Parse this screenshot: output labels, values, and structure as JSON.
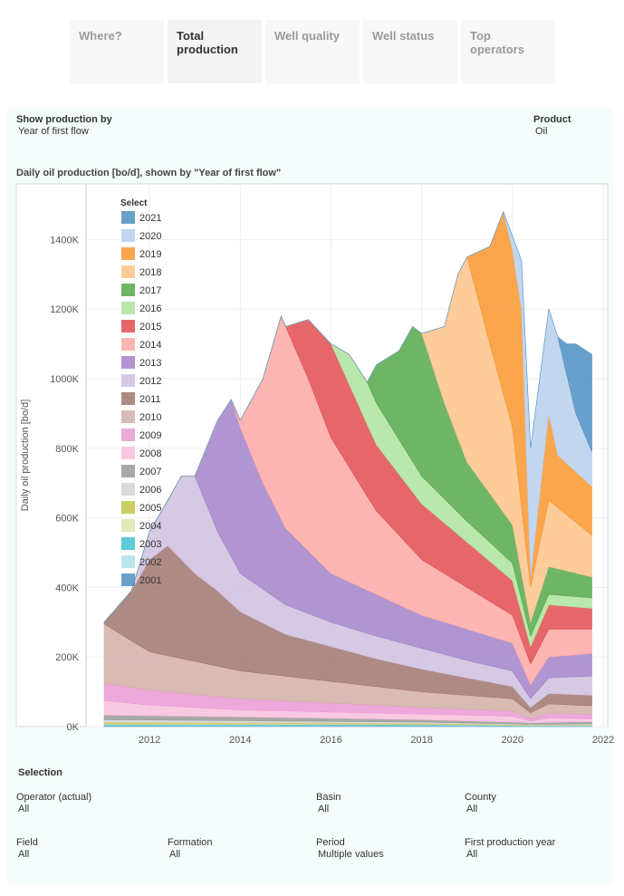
{
  "tabs": [
    {
      "label": "Where?",
      "active": false
    },
    {
      "label": "Total production",
      "active": true
    },
    {
      "label": "Well quality",
      "active": false
    },
    {
      "label": "Well status",
      "active": false
    },
    {
      "label": "Top operators",
      "active": false
    }
  ],
  "controls": {
    "show_by_label": "Show production by",
    "show_by_value": "Year of first flow",
    "product_label": "Product",
    "product_value": "Oil"
  },
  "selection": {
    "heading": "Selection",
    "operator_label": "Operator (actual)",
    "operator_value": "All",
    "basin_label": "Basin",
    "basin_value": "All",
    "county_label": "County",
    "county_value": "All",
    "field_label": "Field",
    "field_value": "All",
    "formation_label": "Formation",
    "formation_value": "All",
    "period_label": "Period",
    "period_value": "Multiple values",
    "fpy_label": "First production year",
    "fpy_value": "All"
  },
  "chart_data": {
    "type": "area",
    "stacked": true,
    "title": "Daily oil production [bo/d], shown by \"Year of first flow\"",
    "xlabel": "",
    "ylabel": "Daily oil production [bo/d]",
    "xlim": [
      2010.6,
      2022.1
    ],
    "ylim": [
      0,
      1560000
    ],
    "x_ticks": [
      "2012",
      "2014",
      "2016",
      "2018",
      "2020",
      "2022"
    ],
    "y_ticks": [
      "0K",
      "200K",
      "400K",
      "600K",
      "800K",
      "1000K",
      "1200K",
      "1400K"
    ],
    "legend_title": "Select",
    "legend_position": "top-left",
    "legend": [
      {
        "name": "2021",
        "color": "#4e8fc3"
      },
      {
        "name": "2020",
        "color": "#b9cfec"
      },
      {
        "name": "2019",
        "color": "#f9962e"
      },
      {
        "name": "2018",
        "color": "#fec38a"
      },
      {
        "name": "2017",
        "color": "#55a84b"
      },
      {
        "name": "2016",
        "color": "#aee39c"
      },
      {
        "name": "2015",
        "color": "#e24c4f"
      },
      {
        "name": "2014",
        "color": "#fda8a6"
      },
      {
        "name": "2013",
        "color": "#a283c9"
      },
      {
        "name": "2012",
        "color": "#cfbfdf"
      },
      {
        "name": "2011",
        "color": "#a0766e"
      },
      {
        "name": "2010",
        "color": "#d3afa7"
      },
      {
        "name": "2009",
        "color": "#ea9ad6"
      },
      {
        "name": "2008",
        "color": "#f8bfdd"
      },
      {
        "name": "2007",
        "color": "#989898"
      },
      {
        "name": "2006",
        "color": "#d3d3d3"
      },
      {
        "name": "2005",
        "color": "#c4c64a"
      },
      {
        "name": "2004",
        "color": "#e0e3af"
      },
      {
        "name": "2003",
        "color": "#3ec3cf"
      },
      {
        "name": "2002",
        "color": "#b0e0e7"
      },
      {
        "name": "2001",
        "color": "#4e8fc3"
      }
    ],
    "series_order_bottom_to_top": [
      "2001",
      "2002",
      "2003",
      "2004",
      "2005",
      "2006",
      "2007",
      "2008",
      "2009",
      "2010",
      "2011",
      "2012",
      "2013",
      "2014",
      "2015",
      "2016",
      "2017",
      "2018",
      "2019",
      "2020",
      "2021"
    ],
    "cumulative_top_by_cohort": [
      {
        "name": "2001",
        "x": [
          2011.0,
          2014.0,
          2018.0,
          2020.4,
          2021.75
        ],
        "y": [
          2000,
          2000,
          2000,
          1000,
          1000
        ]
      },
      {
        "name": "2002",
        "x": [
          2011.0,
          2014.0,
          2018.0,
          2020.4,
          2021.75
        ],
        "y": [
          4000,
          4000,
          3000,
          2000,
          2000
        ]
      },
      {
        "name": "2003",
        "x": [
          2011.0,
          2014.0,
          2018.0,
          2020.4,
          2021.75
        ],
        "y": [
          6000,
          6000,
          5000,
          3000,
          3000
        ]
      },
      {
        "name": "2004",
        "x": [
          2011.0,
          2014.0,
          2018.0,
          2020.4,
          2021.75
        ],
        "y": [
          8000,
          8000,
          7000,
          4000,
          4000
        ]
      },
      {
        "name": "2005",
        "x": [
          2011.0,
          2014.0,
          2018.0,
          2020.4,
          2021.75
        ],
        "y": [
          12000,
          11000,
          9000,
          5000,
          5000
        ]
      },
      {
        "name": "2006",
        "x": [
          2011.0,
          2014.0,
          2018.0,
          2020.4,
          2021.75
        ],
        "y": [
          20000,
          17000,
          13000,
          7000,
          8000
        ]
      },
      {
        "name": "2007",
        "x": [
          2011.0,
          2014.0,
          2018.0,
          2020.4,
          2021.75
        ],
        "y": [
          33000,
          28000,
          20000,
          11000,
          14000
        ]
      },
      {
        "name": "2008",
        "x": [
          2011.0,
          2012.0,
          2014.0,
          2016.0,
          2018.0,
          2020.0,
          2020.4,
          2020.8,
          2021.75
        ],
        "y": [
          75000,
          62000,
          48000,
          42000,
          36000,
          30000,
          16000,
          25000,
          22000
        ]
      },
      {
        "name": "2009",
        "x": [
          2011.0,
          2012.0,
          2014.0,
          2016.0,
          2018.0,
          2020.0,
          2020.4,
          2020.8,
          2021.75
        ],
        "y": [
          125000,
          105000,
          80000,
          68000,
          55000,
          45000,
          22000,
          38000,
          35000
        ]
      },
      {
        "name": "2010",
        "x": [
          2011.0,
          2011.25,
          2012.0,
          2014.0,
          2016.0,
          2018.0,
          2020.0,
          2020.4,
          2020.8,
          2021.75
        ],
        "y": [
          295000,
          275000,
          215000,
          160000,
          130000,
          100000,
          80000,
          40000,
          65000,
          60000
        ]
      },
      {
        "name": "2011",
        "x": [
          2011.0,
          2011.6,
          2012.0,
          2012.4,
          2013.0,
          2013.5,
          2014.0,
          2015.0,
          2016.0,
          2017.0,
          2018.0,
          2019.0,
          2020.0,
          2020.4,
          2020.8,
          2021.75
        ],
        "y": [
          300000,
          390000,
          480000,
          520000,
          440000,
          390000,
          330000,
          265000,
          230000,
          195000,
          165000,
          140000,
          115000,
          55000,
          95000,
          90000
        ]
      },
      {
        "name": "2012",
        "x": [
          2011.0,
          2011.6,
          2012.0,
          2012.4,
          2012.7,
          2013.0,
          2013.5,
          2014.0,
          2015.0,
          2016.0,
          2017.0,
          2018.0,
          2019.0,
          2020.0,
          2020.4,
          2020.8,
          2021.75
        ],
        "y": [
          300000,
          390000,
          560000,
          650000,
          720000,
          720000,
          560000,
          440000,
          350000,
          300000,
          260000,
          225000,
          190000,
          160000,
          80000,
          140000,
          145000
        ]
      },
      {
        "name": "2013",
        "x": [
          2011.0,
          2011.6,
          2012.0,
          2012.4,
          2012.7,
          2013.0,
          2013.5,
          2013.8,
          2014.0,
          2014.5,
          2015.0,
          2016.0,
          2017.0,
          2018.0,
          2019.0,
          2020.0,
          2020.4,
          2020.8,
          2021.75
        ],
        "y": [
          300000,
          390000,
          560000,
          650000,
          720000,
          720000,
          880000,
          940000,
          860000,
          700000,
          570000,
          440000,
          380000,
          320000,
          280000,
          240000,
          120000,
          200000,
          210000
        ]
      },
      {
        "name": "2014",
        "x": [
          2011.0,
          2011.6,
          2012.0,
          2012.4,
          2012.7,
          2013.0,
          2013.5,
          2013.8,
          2014.0,
          2014.5,
          2014.9,
          2015.0,
          2015.5,
          2016.0,
          2017.0,
          2018.0,
          2019.0,
          2020.0,
          2020.4,
          2020.8,
          2021.75
        ],
        "y": [
          300000,
          390000,
          560000,
          650000,
          720000,
          720000,
          880000,
          940000,
          880000,
          1000000,
          1180000,
          1150000,
          1000000,
          830000,
          620000,
          480000,
          400000,
          320000,
          180000,
          280000,
          280000
        ]
      },
      {
        "name": "2015",
        "x": [
          2011.0,
          2011.6,
          2012.0,
          2012.4,
          2012.7,
          2013.0,
          2013.5,
          2013.8,
          2014.0,
          2014.5,
          2014.9,
          2015.0,
          2015.5,
          2016.0,
          2017.0,
          2018.0,
          2019.0,
          2020.0,
          2020.4,
          2020.8,
          2021.75
        ],
        "y": [
          300000,
          390000,
          560000,
          650000,
          720000,
          720000,
          880000,
          940000,
          880000,
          1000000,
          1180000,
          1150000,
          1170000,
          1100000,
          810000,
          640000,
          530000,
          420000,
          230000,
          350000,
          340000
        ]
      },
      {
        "name": "2016",
        "x": [
          2011.0,
          2011.6,
          2012.0,
          2012.4,
          2012.7,
          2013.0,
          2013.5,
          2013.8,
          2014.0,
          2014.5,
          2014.9,
          2015.0,
          2015.5,
          2016.0,
          2016.4,
          2016.8,
          2017.0,
          2018.0,
          2019.0,
          2020.0,
          2020.4,
          2020.8,
          2021.75
        ],
        "y": [
          300000,
          390000,
          560000,
          650000,
          720000,
          720000,
          880000,
          940000,
          880000,
          1000000,
          1180000,
          1150000,
          1170000,
          1100000,
          1070000,
          990000,
          930000,
          720000,
          590000,
          470000,
          260000,
          380000,
          370000
        ]
      },
      {
        "name": "2017",
        "x": [
          2011.0,
          2011.6,
          2012.0,
          2012.4,
          2012.7,
          2013.0,
          2013.5,
          2013.8,
          2014.0,
          2014.5,
          2014.9,
          2015.0,
          2015.5,
          2016.0,
          2016.4,
          2016.8,
          2017.0,
          2017.5,
          2017.8,
          2018.0,
          2018.5,
          2019.0,
          2020.0,
          2020.4,
          2020.8,
          2021.75
        ],
        "y": [
          300000,
          390000,
          560000,
          650000,
          720000,
          720000,
          880000,
          940000,
          880000,
          1000000,
          1180000,
          1150000,
          1170000,
          1100000,
          1070000,
          990000,
          1040000,
          1080000,
          1150000,
          1130000,
          930000,
          760000,
          580000,
          300000,
          460000,
          430000
        ]
      },
      {
        "name": "2018",
        "x": [
          2011.0,
          2011.6,
          2012.0,
          2012.4,
          2012.7,
          2013.0,
          2013.5,
          2013.8,
          2014.0,
          2014.5,
          2014.9,
          2015.0,
          2015.5,
          2016.0,
          2016.4,
          2016.8,
          2017.0,
          2017.5,
          2017.8,
          2018.0,
          2018.5,
          2018.8,
          2019.0,
          2019.5,
          2020.0,
          2020.4,
          2020.8,
          2021.75
        ],
        "y": [
          300000,
          390000,
          560000,
          650000,
          720000,
          720000,
          880000,
          940000,
          880000,
          1000000,
          1180000,
          1150000,
          1170000,
          1100000,
          1070000,
          990000,
          1040000,
          1080000,
          1150000,
          1130000,
          1150000,
          1300000,
          1350000,
          1100000,
          860000,
          400000,
          650000,
          550000
        ]
      },
      {
        "name": "2019",
        "x": [
          2011.0,
          2011.6,
          2012.0,
          2012.4,
          2012.7,
          2013.0,
          2013.5,
          2013.8,
          2014.0,
          2014.5,
          2014.9,
          2015.0,
          2015.5,
          2016.0,
          2016.4,
          2016.8,
          2017.0,
          2017.5,
          2017.8,
          2018.0,
          2018.5,
          2018.8,
          2019.0,
          2019.5,
          2019.8,
          2020.0,
          2020.2,
          2020.4,
          2020.8,
          2021.0,
          2021.75
        ],
        "y": [
          300000,
          390000,
          560000,
          650000,
          720000,
          720000,
          880000,
          940000,
          880000,
          1000000,
          1180000,
          1150000,
          1170000,
          1100000,
          1070000,
          990000,
          1040000,
          1080000,
          1150000,
          1130000,
          1150000,
          1300000,
          1350000,
          1380000,
          1480000,
          1370000,
          1200000,
          430000,
          900000,
          780000,
          690000
        ]
      },
      {
        "name": "2020",
        "x": [
          2011.0,
          2011.6,
          2012.0,
          2012.4,
          2012.7,
          2013.0,
          2013.5,
          2013.8,
          2014.0,
          2014.5,
          2014.9,
          2015.0,
          2015.5,
          2016.0,
          2016.4,
          2016.8,
          2017.0,
          2017.5,
          2017.8,
          2018.0,
          2018.5,
          2018.8,
          2019.0,
          2019.5,
          2019.8,
          2020.0,
          2020.2,
          2020.4,
          2020.8,
          2021.0,
          2021.4,
          2021.75
        ],
        "y": [
          300000,
          390000,
          560000,
          650000,
          720000,
          720000,
          880000,
          940000,
          880000,
          1000000,
          1180000,
          1150000,
          1170000,
          1100000,
          1070000,
          990000,
          1040000,
          1080000,
          1150000,
          1130000,
          1150000,
          1300000,
          1350000,
          1380000,
          1480000,
          1410000,
          1340000,
          800000,
          1200000,
          1120000,
          900000,
          790000
        ]
      },
      {
        "name": "2021",
        "x": [
          2011.0,
          2011.6,
          2012.0,
          2012.4,
          2012.7,
          2013.0,
          2013.5,
          2013.8,
          2014.0,
          2014.5,
          2014.9,
          2015.0,
          2015.5,
          2016.0,
          2016.4,
          2016.8,
          2017.0,
          2017.5,
          2017.8,
          2018.0,
          2018.5,
          2018.8,
          2019.0,
          2019.5,
          2019.8,
          2020.0,
          2020.2,
          2020.4,
          2020.8,
          2021.0,
          2021.2,
          2021.4,
          2021.75
        ],
        "y": [
          300000,
          390000,
          560000,
          650000,
          720000,
          720000,
          880000,
          940000,
          880000,
          1000000,
          1180000,
          1150000,
          1170000,
          1100000,
          1070000,
          990000,
          1040000,
          1080000,
          1150000,
          1130000,
          1150000,
          1300000,
          1350000,
          1380000,
          1480000,
          1410000,
          1340000,
          800000,
          1200000,
          1120000,
          1100000,
          1100000,
          1070000
        ]
      }
    ]
  }
}
